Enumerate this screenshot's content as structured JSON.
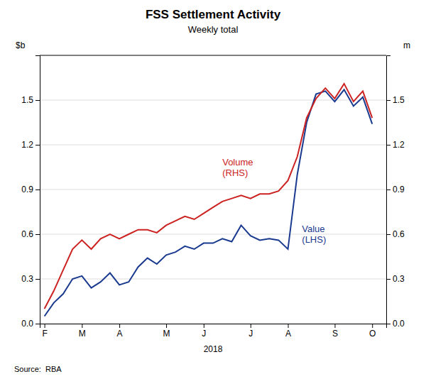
{
  "chart_data": {
    "type": "line",
    "title": "FSS Settlement Activity",
    "subtitle": "Weekly total",
    "xlabel": "2018",
    "ylabel": "$b",
    "y2label": "m",
    "source": "Source:  RBA",
    "grid": "y",
    "x": [
      0,
      1,
      2,
      3,
      4,
      5,
      6,
      7,
      8,
      9,
      10,
      11,
      12,
      13,
      14,
      15,
      16,
      17,
      18,
      19,
      20,
      21,
      22,
      23,
      24,
      25,
      26,
      27,
      28,
      29,
      30,
      31,
      32,
      33,
      34,
      35
    ],
    "xlim": [
      -0.5,
      36.5
    ],
    "xticks": [
      {
        "value": 0,
        "label": "F"
      },
      {
        "value": 4,
        "label": "M"
      },
      {
        "value": 8,
        "label": "A"
      },
      {
        "value": 13,
        "label": "M"
      },
      {
        "value": 17,
        "label": "J"
      },
      {
        "value": 22,
        "label": "J"
      },
      {
        "value": 26,
        "label": "A"
      },
      {
        "value": 31,
        "label": "S"
      },
      {
        "value": 35,
        "label": "O"
      }
    ],
    "ylim": [
      0.0,
      1.8
    ],
    "yticks": [
      {
        "value": 0.0,
        "label": "0.0"
      },
      0.3,
      0.6,
      0.9,
      1.2,
      1.5
    ],
    "y2lim": [
      0.0,
      1.8
    ],
    "y2ticks": [
      {
        "value": 0.0,
        "label": "0.0"
      },
      0.3,
      0.6,
      0.9,
      1.2,
      1.5
    ],
    "series": [
      {
        "color": "#1a3a8f",
        "values": [
          0.05,
          0.14,
          0.2,
          0.3,
          0.32,
          0.24,
          0.28,
          0.34,
          0.26,
          0.28,
          0.38,
          0.44,
          0.4,
          0.46,
          0.48,
          0.52,
          0.5,
          0.54,
          0.54,
          0.57,
          0.55,
          0.66,
          0.59,
          0.56,
          0.57,
          0.56,
          0.5,
          1.0,
          1.35,
          1.54,
          1.56,
          1.49,
          1.57,
          1.46,
          1.52,
          1.34
        ]
      },
      {
        "color": "#cc2222",
        "axis": "y2",
        "values": [
          0.1,
          0.22,
          0.36,
          0.5,
          0.56,
          0.5,
          0.57,
          0.6,
          0.57,
          0.6,
          0.63,
          0.63,
          0.61,
          0.66,
          0.69,
          0.72,
          0.7,
          0.74,
          0.78,
          0.82,
          0.84,
          0.86,
          0.84,
          0.87,
          0.87,
          0.89,
          0.96,
          1.12,
          1.38,
          1.51,
          1.58,
          1.51,
          1.61,
          1.49,
          1.56,
          1.38
        ]
      }
    ],
    "annotations": [
      {
        "text": "Volume\n(RHS)",
        "x": 19,
        "y": 1.05,
        "color": "#cc2222"
      },
      {
        "text": "Value\n(LHS)",
        "x": 27.5,
        "y": 0.6,
        "color": "#1a3a8f"
      }
    ]
  }
}
